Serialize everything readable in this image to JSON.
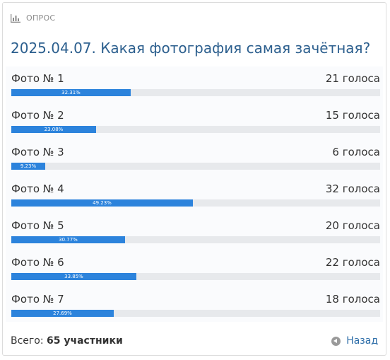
{
  "header": {
    "label": "ОПРОС",
    "icon": "bar-chart-icon"
  },
  "title": "2025.04.07. Какая фотография самая зачётная?",
  "colors": {
    "accent": "#2c83dc",
    "title": "#2c5f8e",
    "track": "#e7e9ec"
  },
  "options": [
    {
      "label": "Фото № 1",
      "votes": "21 голоса",
      "percent": 32.31,
      "percent_label": "32.31%"
    },
    {
      "label": "Фото № 2",
      "votes": "15 голоса",
      "percent": 23.08,
      "percent_label": "23.08%"
    },
    {
      "label": "Фото № 3",
      "votes": "6 голоса",
      "percent": 9.23,
      "percent_label": "9.23%"
    },
    {
      "label": "Фото № 4",
      "votes": "32 голоса",
      "percent": 49.23,
      "percent_label": "49.23%"
    },
    {
      "label": "Фото № 5",
      "votes": "20 голоса",
      "percent": 30.77,
      "percent_label": "30.77%"
    },
    {
      "label": "Фото № 6",
      "votes": "22 голоса",
      "percent": 33.85,
      "percent_label": "33.85%"
    },
    {
      "label": "Фото № 7",
      "votes": "18 голоса",
      "percent": 27.69,
      "percent_label": "27.69%"
    }
  ],
  "footer": {
    "total_prefix": "Всего: ",
    "total_value": "65 участники",
    "back_label": "Назад",
    "back_icon": "circle-arrow-left-icon"
  }
}
